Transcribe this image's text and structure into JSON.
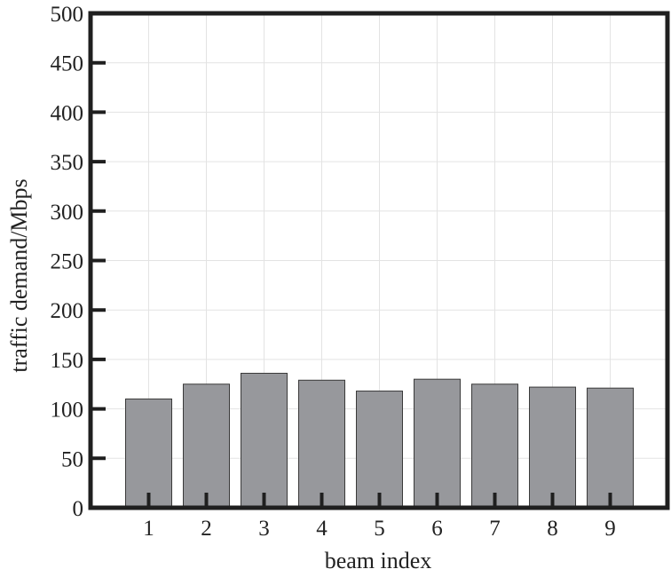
{
  "chart_data": {
    "type": "bar",
    "xlabel": "beam index",
    "ylabel": "traffic demand/Mbps",
    "categories": [
      "1",
      "2",
      "3",
      "4",
      "5",
      "6",
      "7",
      "8",
      "9"
    ],
    "values": [
      110,
      125,
      136,
      129,
      118,
      130,
      125,
      122,
      121
    ],
    "ylim": [
      0,
      500
    ],
    "yticks": [
      0,
      50,
      100,
      150,
      200,
      250,
      300,
      350,
      400,
      450,
      500
    ],
    "grid": true,
    "bar_color": "#97989c",
    "bar_edge_color": "#3a3a3a",
    "frame_color": "#1f1f1f",
    "grid_color": "#e3e3e3"
  }
}
